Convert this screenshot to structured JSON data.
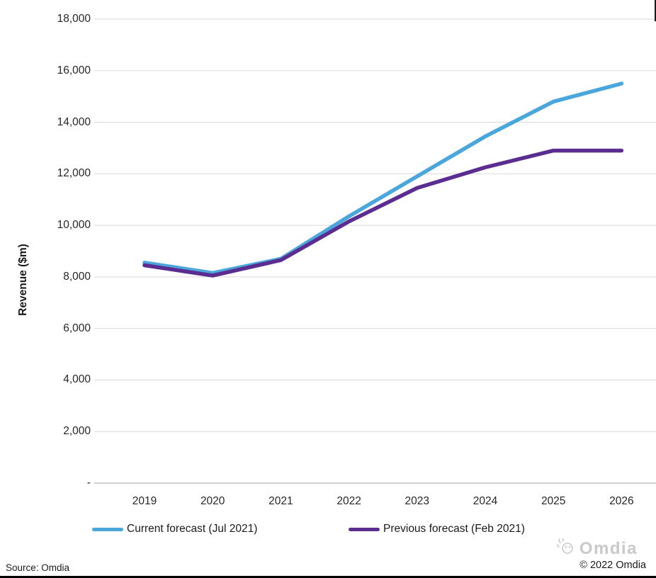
{
  "chart_data": {
    "type": "line",
    "title": "",
    "x_categories": [
      "2019",
      "2020",
      "2021",
      "2022",
      "2023",
      "2024",
      "2025",
      "2026"
    ],
    "series": [
      {
        "name": "Current forecast (Jul 2021)",
        "color": "#4BA6DC",
        "values": [
          8550,
          8150,
          8700,
          10350,
          11900,
          13450,
          14800,
          15500
        ]
      },
      {
        "name": "Previous forecast (Feb 2021)",
        "color": "#5B2D91",
        "values": [
          8450,
          8050,
          8650,
          10150,
          11450,
          12250,
          12900,
          12900
        ]
      }
    ],
    "xlabel": "",
    "ylabel": "Revenue ($m)",
    "ylim": [
      0,
      18000
    ],
    "y_ticks": [
      {
        "value": 18000,
        "label": "18,000"
      },
      {
        "value": 16000,
        "label": "16,000"
      },
      {
        "value": 14000,
        "label": "14,000"
      },
      {
        "value": 12000,
        "label": "12,000"
      },
      {
        "value": 10000,
        "label": "10,000"
      },
      {
        "value": 8000,
        "label": "8,000"
      },
      {
        "value": 6000,
        "label": "6,000"
      },
      {
        "value": 4000,
        "label": "4,000"
      },
      {
        "value": 2000,
        "label": "2,000"
      },
      {
        "value": 0,
        "label": "-"
      }
    ],
    "grid": "horizontal-only",
    "legend_position": "bottom-left"
  },
  "footer": {
    "source": "Source: Omdia",
    "logo_text": "Omdia",
    "copyright": "© 2022 Omdia"
  },
  "colors": {
    "gridline": "#d9d9d9",
    "axis_line": "#c0c0c0",
    "tick_text": "#262626"
  }
}
